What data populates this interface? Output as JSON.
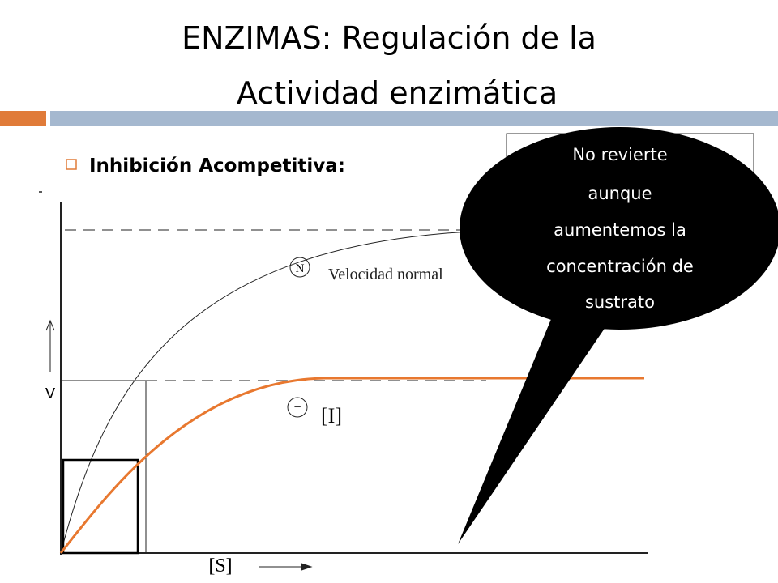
{
  "header": {
    "title_lines": [
      "ENZIMAS: Regulación de la",
      "Actividad enzimática"
    ]
  },
  "bullet": "Inhibición Acompetitiva:",
  "diagram": {
    "curve_n_label": "N",
    "curve_n_text": "Velocidad normal",
    "curve_i_label": "−",
    "curve_i_text": "[I]",
    "y_axis_label": "V",
    "x_axis_label": "[S]"
  },
  "callout": {
    "lines": [
      "No revierte",
      "aunque",
      "aumentemos la",
      "concentración de",
      "sustrato"
    ]
  }
}
